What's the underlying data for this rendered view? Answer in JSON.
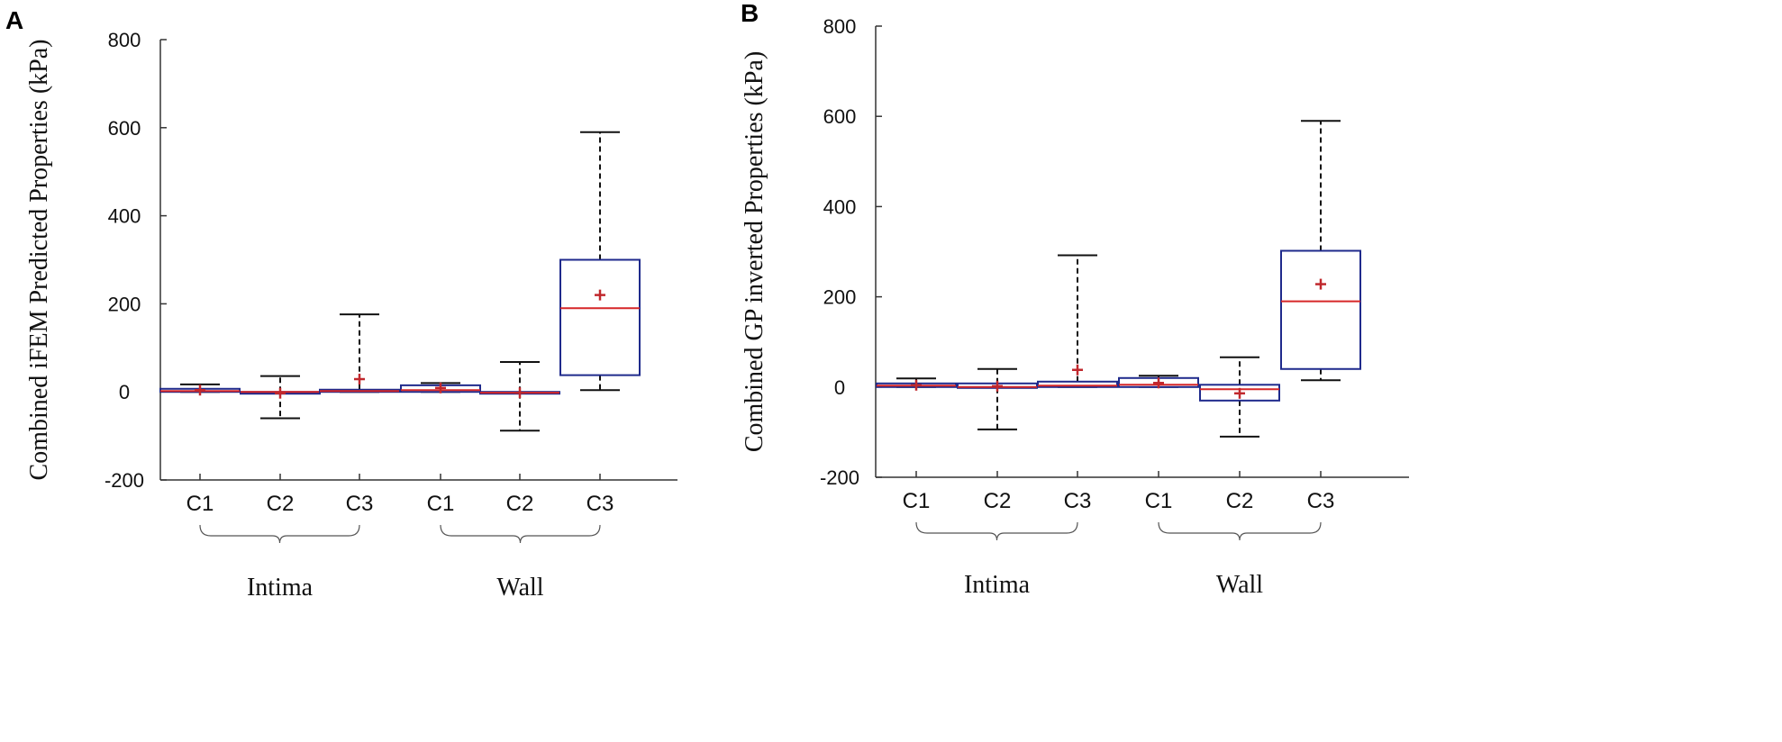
{
  "chart_data": [
    {
      "type": "box",
      "panel_label": "A",
      "ylabel": "Combined iFEM Predicted Properties (kPa)",
      "ylim": [
        -200,
        800
      ],
      "yticks": [
        -200,
        0,
        200,
        400,
        600,
        800
      ],
      "categories": [
        "C1",
        "C2",
        "C3",
        "C1",
        "C2",
        "C3"
      ],
      "groups": [
        {
          "name": "Intima",
          "categories": [
            0,
            1,
            2
          ]
        },
        {
          "name": "Wall",
          "categories": [
            3,
            4,
            5
          ]
        }
      ],
      "boxes": [
        {
          "label": "C1",
          "group": "Intima",
          "whisker_low": 0,
          "q1": 0,
          "median": 2,
          "q3": 7,
          "whisker_high": 17,
          "mean": 4
        },
        {
          "label": "C2",
          "group": "Intima",
          "whisker_low": -60,
          "q1": -2,
          "median": 0,
          "q3": 0,
          "whisker_high": 36,
          "mean": -3
        },
        {
          "label": "C3",
          "group": "Intima",
          "whisker_low": 0,
          "q1": 0,
          "median": 2,
          "q3": 5,
          "whisker_high": 176,
          "mean": 29
        },
        {
          "label": "C1",
          "group": "Wall",
          "whisker_low": 0,
          "q1": 0,
          "median": 4,
          "q3": 15,
          "whisker_high": 20,
          "mean": 9
        },
        {
          "label": "C2",
          "group": "Wall",
          "whisker_low": -88,
          "q1": -3,
          "median": -2,
          "q3": 0,
          "whisker_high": 68,
          "mean": -2
        },
        {
          "label": "C3",
          "group": "Wall",
          "whisker_low": 4,
          "q1": 38,
          "median": 190,
          "q3": 300,
          "whisker_high": 590,
          "mean": 220
        }
      ]
    },
    {
      "type": "box",
      "panel_label": "B",
      "ylabel": "Combined GP inverted Properties (kPa)",
      "ylim": [
        -200,
        800
      ],
      "yticks": [
        -200,
        0,
        200,
        400,
        600,
        800
      ],
      "categories": [
        "C1",
        "C2",
        "C3",
        "C1",
        "C2",
        "C3"
      ],
      "groups": [
        {
          "name": "Intima",
          "categories": [
            0,
            1,
            2
          ]
        },
        {
          "name": "Wall",
          "categories": [
            3,
            4,
            5
          ]
        }
      ],
      "boxes": [
        {
          "label": "C1",
          "group": "Intima",
          "whisker_low": 0,
          "q1": 0,
          "median": 3,
          "q3": 8,
          "whisker_high": 19,
          "mean": 4
        },
        {
          "label": "C2",
          "group": "Intima",
          "whisker_low": -94,
          "q1": -2,
          "median": 0,
          "q3": 8,
          "whisker_high": 40,
          "mean": 2
        },
        {
          "label": "C3",
          "group": "Intima",
          "whisker_low": 0,
          "q1": 0,
          "median": 3,
          "q3": 12,
          "whisker_high": 292,
          "mean": 38
        },
        {
          "label": "C1",
          "group": "Wall",
          "whisker_low": 0,
          "q1": 0,
          "median": 5,
          "q3": 20,
          "whisker_high": 25,
          "mean": 9
        },
        {
          "label": "C2",
          "group": "Wall",
          "whisker_low": -110,
          "q1": -30,
          "median": -5,
          "q3": 5,
          "whisker_high": 66,
          "mean": -14
        },
        {
          "label": "C3",
          "group": "Wall",
          "whisker_low": 15,
          "q1": 40,
          "median": 190,
          "q3": 302,
          "whisker_high": 590,
          "mean": 228
        }
      ]
    }
  ],
  "colors": {
    "box": "#1f2a8c",
    "median": "#d62728",
    "mean_marker": "#c0282d",
    "whisker": "#111111",
    "axis": "#333333"
  }
}
